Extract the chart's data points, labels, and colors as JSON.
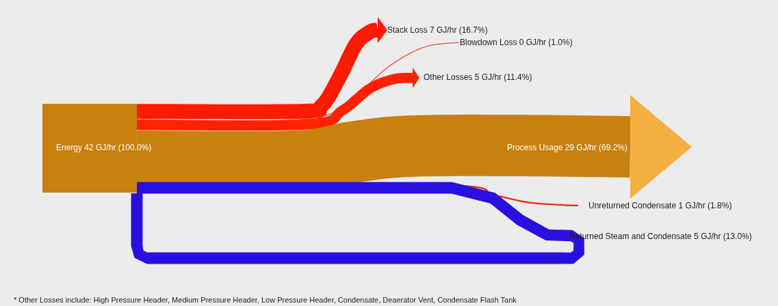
{
  "chart_data": {
    "type": "other",
    "categories": [
      "Energy 42 GJ/hr",
      "Stack Loss 7 GJ/hr",
      "Blowdown Loss 0 GJ/hr",
      "Other Losses 5 GJ/hr",
      "Process Usage 29 GJ/hr",
      "Unreturned Condensate 1 GJ/hr",
      "Returned Steam and Condensate 5 GJ/hr"
    ],
    "values": [
      100,
      16.7,
      1.0,
      11.4,
      69.2,
      1.8,
      13.0
    ],
    "value_labels": [
      "(100.0%)",
      "(16.7%)",
      "(1.0%)",
      "(11.4%)",
      "(69.2%)",
      "(1.8%)",
      "(13.0%)"
    ],
    "colors": [
      "#c8800e",
      "#ff1a00",
      "#f04a2a",
      "#ff2200",
      "#c8800e",
      "#ee2a10",
      "#2a10e0"
    ],
    "annotations": [
      "* Other Losses include:  High Pressure Header, Medium Pressure Header, Low Pressure Header, Condensate, Deaerator Vent, Condensate Flash Tank"
    ]
  }
}
